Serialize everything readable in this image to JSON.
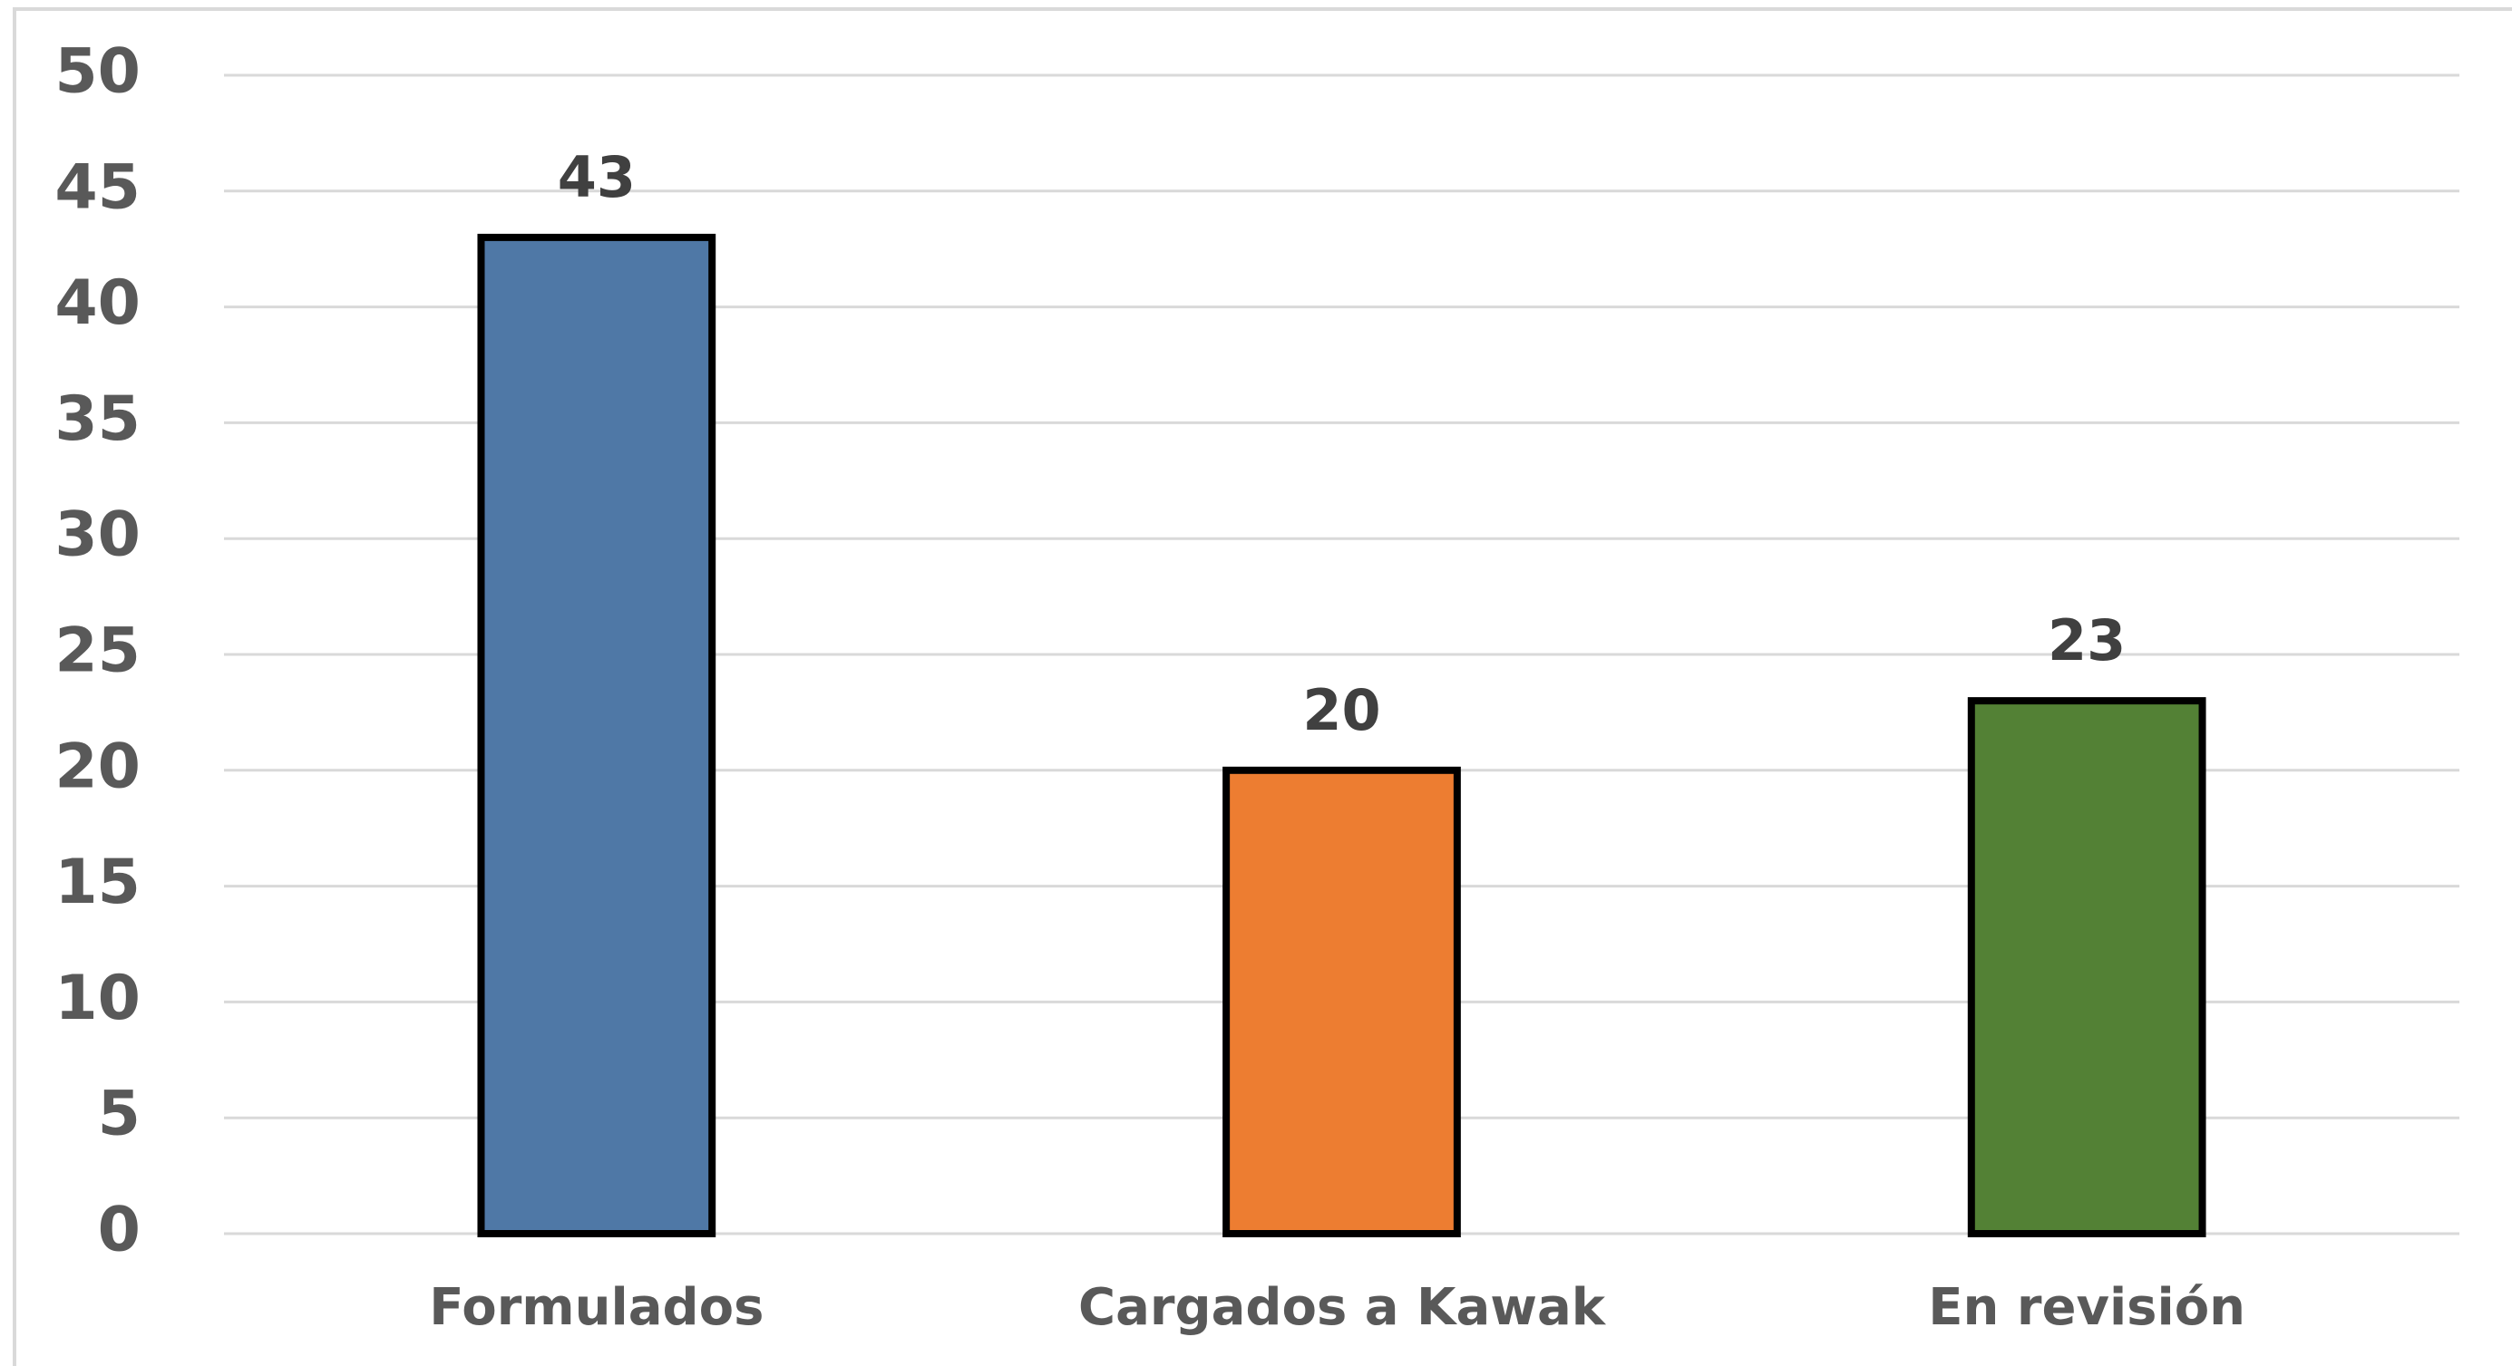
{
  "chart_data": {
    "type": "bar",
    "categories": [
      "Formulados",
      "Cargados a Kawak",
      "En revisión"
    ],
    "values": [
      43,
      20,
      23
    ],
    "colors": [
      "#4f78a6",
      "#ed7d31",
      "#538135"
    ],
    "ylim": [
      0,
      50
    ],
    "yticks": [
      0,
      5,
      10,
      15,
      20,
      25,
      30,
      35,
      40,
      45,
      50
    ],
    "grid": true
  }
}
